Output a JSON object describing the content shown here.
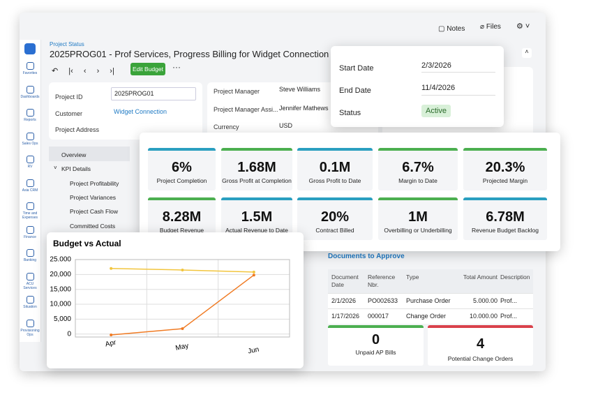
{
  "sidebar": {
    "items": [
      "Favorites",
      "Dashboards",
      "Reports",
      "Sales Ops",
      "RV",
      "Asia CRM",
      "Time and Expenses",
      "Finance",
      "Banking",
      "ACU Services",
      "Situation",
      "Provisioning Ops"
    ]
  },
  "topbar": {
    "notes": "Notes",
    "files": "Files"
  },
  "header": {
    "breadcrumb": "Project Status",
    "title": "2025PROG01 - Prof Services, Progress Billing for Widget Connection",
    "edit_button": "Edit Budget"
  },
  "form": {
    "project_id_label": "Project ID",
    "project_id": "2025PROG01",
    "customer_label": "Customer",
    "customer": "Widget Connection",
    "address_label": "Project Address",
    "manager_label": "Project Manager",
    "manager": "Steve Williams",
    "assistant_label": "Project Manager Assi...",
    "assistant": "Jennifer Mathews",
    "currency_label": "Currency",
    "currency": "USD"
  },
  "dates": {
    "start_label": "Start Date",
    "start": "2/3/2026",
    "end_label": "End Date",
    "end": "11/4/2026",
    "status_label": "Status",
    "status": "Active"
  },
  "nav": {
    "items": [
      "Overview",
      "KPI Details",
      "Project Profitability",
      "Project Variances",
      "Project Cash Flow",
      "Committed Costs"
    ]
  },
  "kpis": [
    {
      "value": "6%",
      "label": "Project Completion",
      "color": "#2a9fc0"
    },
    {
      "value": "1.68M",
      "label": "Gross Profit at Completion",
      "color": "#4caf50"
    },
    {
      "value": "0.1M",
      "label": "Gross Profit to Date",
      "color": "#2a9fc0"
    },
    {
      "value": "6.7%",
      "label": "Margin to Date",
      "color": "#4caf50"
    },
    {
      "value": "20.3%",
      "label": "Projected Margin",
      "color": "#4caf50"
    },
    {
      "value": "8.28M",
      "label": "Budget Revenue",
      "color": "#4caf50"
    },
    {
      "value": "1.5M",
      "label": "Actual Revenue to Date",
      "color": "#2a9fc0"
    },
    {
      "value": "20%",
      "label": "Contract Billed",
      "color": "#2a9fc0"
    },
    {
      "value": "1M",
      "label": "Overbilling or Underbilling",
      "color": "#4caf50"
    },
    {
      "value": "6.78M",
      "label": "Revenue Budget Backlog",
      "color": "#2a9fc0"
    }
  ],
  "documents": {
    "title": "Documents to Approve",
    "columns": [
      "Document Date",
      "Reference Nbr.",
      "Type",
      "Total Amount",
      "Description"
    ],
    "rows": [
      [
        "2/1/2026",
        "PO002633",
        "Purchase Order",
        "5.000.00",
        "Prof..."
      ],
      [
        "1/17/2026",
        "000017",
        "Change Order",
        "10.000.00",
        "Prof..."
      ]
    ]
  },
  "bottom_kpis": [
    {
      "value": "0",
      "label": "Unpaid AP Bills",
      "color": "#4caf50"
    },
    {
      "value": "4",
      "label": "Potential Change Orders",
      "color": "#d9414b"
    }
  ],
  "chart_data": {
    "type": "line",
    "title": "Budget vs Actual",
    "categories": [
      "Apr",
      "May",
      "Jun"
    ],
    "series": [
      {
        "color": "#f2c53d",
        "values": [
          22000,
          21500,
          20800
        ]
      },
      {
        "color": "#f07a22",
        "values": [
          -300,
          1800,
          19800
        ]
      }
    ],
    "ylim": [
      -1000,
      25000
    ],
    "yticks": [
      0,
      {
        "value": 5000,
        "label": "5,000"
      },
      {
        "value": 10000,
        "label": "10,000"
      },
      {
        "value": 15000,
        "label": "15,000"
      },
      {
        "value": 20000,
        "label": "20,000"
      },
      {
        "value": 25000,
        "label": "25.000"
      }
    ],
    "grid": true
  }
}
